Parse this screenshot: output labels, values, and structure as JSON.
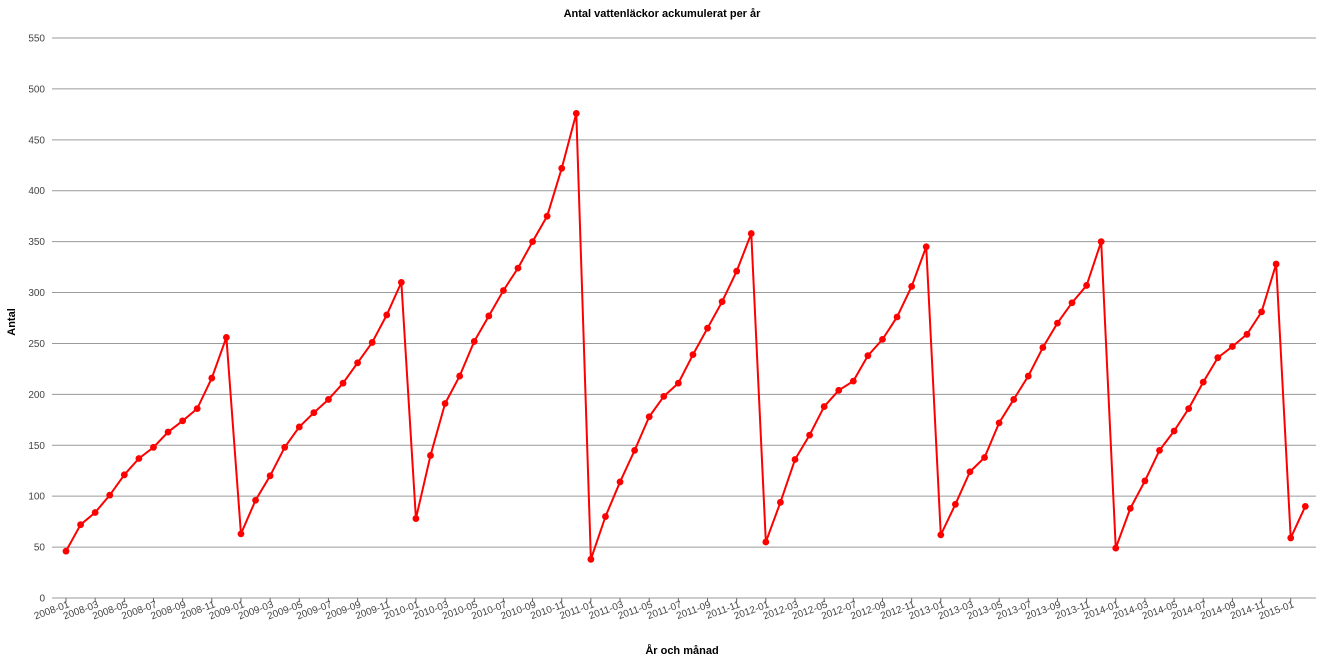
{
  "chart_data": {
    "type": "line",
    "title": "Antal vattenläckor ackumulerat per år",
    "xlabel": "År och månad",
    "ylabel": "Antal",
    "ylim": [
      0,
      550
    ],
    "yticks": [
      0,
      50,
      100,
      150,
      200,
      250,
      300,
      350,
      400,
      450,
      500,
      550
    ],
    "grid": true,
    "x_tick_labels": [
      "2008-01",
      "2008-03",
      "2008-05",
      "2008-07",
      "2008-09",
      "2008-11",
      "2009-01",
      "2009-03",
      "2009-05",
      "2009-07",
      "2009-09",
      "2009-11",
      "2010-01",
      "2010-03",
      "2010-05",
      "2010-07",
      "2010-09",
      "2010-11",
      "2011-01",
      "2011-03",
      "2011-05",
      "2011-07",
      "2011-09",
      "2011-11",
      "2012-01",
      "2012-03",
      "2012-05",
      "2012-07",
      "2012-09",
      "2012-11",
      "2013-01",
      "2013-03",
      "2013-05",
      "2013-07",
      "2013-09",
      "2013-11",
      "2014-01",
      "2014-03",
      "2014-05",
      "2014-07",
      "2014-09",
      "2014-11",
      "2015-01"
    ],
    "x": [
      "2008-01",
      "2008-02",
      "2008-03",
      "2008-04",
      "2008-05",
      "2008-06",
      "2008-07",
      "2008-08",
      "2008-09",
      "2008-10",
      "2008-11",
      "2008-12",
      "2009-01",
      "2009-02",
      "2009-03",
      "2009-04",
      "2009-05",
      "2009-06",
      "2009-07",
      "2009-08",
      "2009-09",
      "2009-10",
      "2009-11",
      "2009-12",
      "2010-01",
      "2010-02",
      "2010-03",
      "2010-04",
      "2010-05",
      "2010-06",
      "2010-07",
      "2010-08",
      "2010-09",
      "2010-10",
      "2010-11",
      "2010-12",
      "2011-01",
      "2011-02",
      "2011-03",
      "2011-04",
      "2011-05",
      "2011-06",
      "2011-07",
      "2011-08",
      "2011-09",
      "2011-10",
      "2011-11",
      "2011-12",
      "2012-01",
      "2012-02",
      "2012-03",
      "2012-04",
      "2012-05",
      "2012-06",
      "2012-07",
      "2012-08",
      "2012-09",
      "2012-10",
      "2012-11",
      "2012-12",
      "2013-01",
      "2013-02",
      "2013-03",
      "2013-04",
      "2013-05",
      "2013-06",
      "2013-07",
      "2013-08",
      "2013-09",
      "2013-10",
      "2013-11",
      "2013-12",
      "2014-01",
      "2014-02",
      "2014-03",
      "2014-04",
      "2014-05",
      "2014-06",
      "2014-07",
      "2014-08",
      "2014-09",
      "2014-10",
      "2014-11",
      "2014-12",
      "2015-01",
      "2015-02"
    ],
    "series": [
      {
        "color": "#ff0000",
        "values": [
          46,
          72,
          84,
          101,
          121,
          137,
          148,
          163,
          174,
          186,
          216,
          256,
          63,
          96,
          120,
          148,
          168,
          182,
          195,
          211,
          231,
          251,
          278,
          310,
          78,
          140,
          191,
          218,
          252,
          277,
          302,
          324,
          350,
          375,
          422,
          476,
          38,
          80,
          114,
          145,
          178,
          198,
          211,
          239,
          265,
          291,
          321,
          358,
          55,
          94,
          136,
          160,
          188,
          204,
          213,
          238,
          254,
          276,
          306,
          345,
          62,
          92,
          124,
          138,
          172,
          195,
          218,
          246,
          270,
          290,
          307,
          350,
          49,
          88,
          115,
          145,
          164,
          186,
          212,
          236,
          247,
          259,
          281,
          328,
          59,
          90
        ]
      }
    ]
  }
}
